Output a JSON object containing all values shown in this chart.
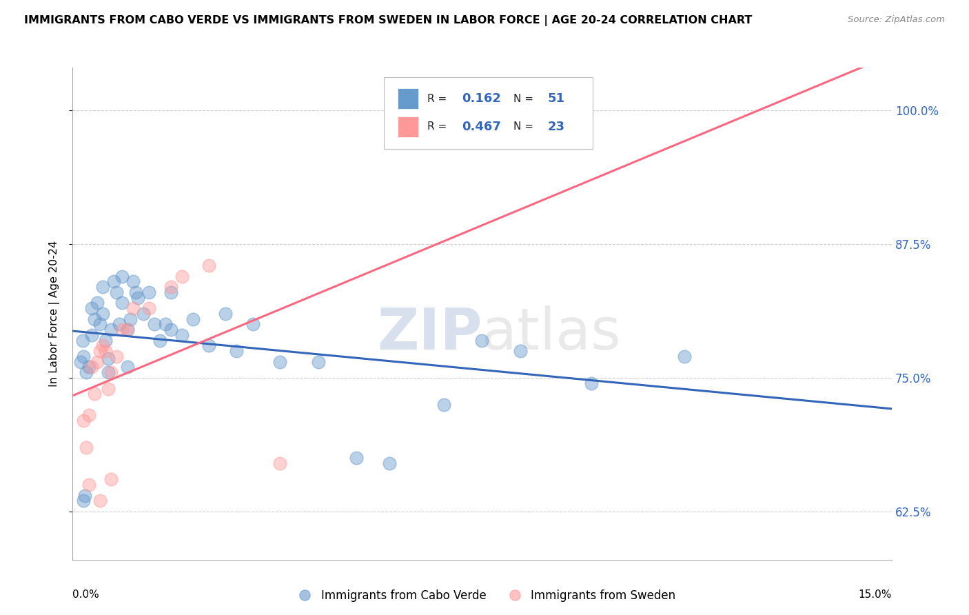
{
  "title": "IMMIGRANTS FROM CABO VERDE VS IMMIGRANTS FROM SWEDEN IN LABOR FORCE | AGE 20-24 CORRELATION CHART",
  "source": "Source: ZipAtlas.com",
  "yaxis_label": "In Labor Force | Age 20-24",
  "legend_label1": "Immigrants from Cabo Verde",
  "legend_label2": "Immigrants from Sweden",
  "r1": "0.162",
  "n1": "51",
  "r2": "0.467",
  "n2": "23",
  "blue_color": "#6699CC",
  "pink_color": "#FF9999",
  "line_blue": "#3366BB",
  "line_pink": "#FF6680",
  "cabo_verde_x": [
    0.15,
    0.18,
    0.2,
    0.25,
    0.3,
    0.35,
    0.35,
    0.4,
    0.45,
    0.5,
    0.55,
    0.55,
    0.6,
    0.65,
    0.65,
    0.7,
    0.75,
    0.8,
    0.85,
    0.9,
    0.9,
    1.0,
    1.0,
    1.05,
    1.1,
    1.15,
    1.2,
    1.3,
    1.4,
    1.5,
    1.6,
    1.7,
    1.8,
    2.0,
    2.2,
    2.5,
    3.0,
    3.3,
    3.8,
    4.5,
    5.2,
    5.8,
    6.8,
    7.5,
    8.2,
    9.5,
    11.2,
    0.2,
    0.22,
    1.8,
    2.8
  ],
  "cabo_verde_y": [
    76.5,
    78.5,
    77.0,
    75.5,
    76.0,
    79.0,
    81.5,
    80.5,
    82.0,
    80.0,
    81.0,
    83.5,
    78.5,
    75.5,
    76.8,
    79.5,
    84.0,
    83.0,
    80.0,
    82.0,
    84.5,
    76.0,
    79.5,
    80.5,
    84.0,
    83.0,
    82.5,
    81.0,
    83.0,
    80.0,
    78.5,
    80.0,
    83.0,
    79.0,
    80.5,
    78.0,
    77.5,
    80.0,
    76.5,
    76.5,
    67.5,
    67.0,
    72.5,
    78.5,
    77.5,
    74.5,
    77.0,
    63.5,
    64.0,
    79.5,
    81.0
  ],
  "sweden_x": [
    0.2,
    0.25,
    0.3,
    0.35,
    0.4,
    0.45,
    0.5,
    0.55,
    0.6,
    0.65,
    0.7,
    0.8,
    0.9,
    1.0,
    1.1,
    1.4,
    1.8,
    2.0,
    2.5,
    3.8,
    0.3,
    0.5,
    0.7
  ],
  "sweden_y": [
    71.0,
    68.5,
    71.5,
    76.0,
    73.5,
    76.5,
    77.5,
    78.0,
    77.5,
    74.0,
    75.5,
    77.0,
    79.5,
    79.5,
    81.5,
    81.5,
    83.5,
    84.5,
    85.5,
    67.0,
    65.0,
    63.5,
    65.5
  ],
  "xmin": 0.0,
  "xmax": 15.0,
  "ymin": 58.0,
  "ymax": 104.0,
  "yticks": [
    62.5,
    75.0,
    87.5,
    100.0
  ]
}
